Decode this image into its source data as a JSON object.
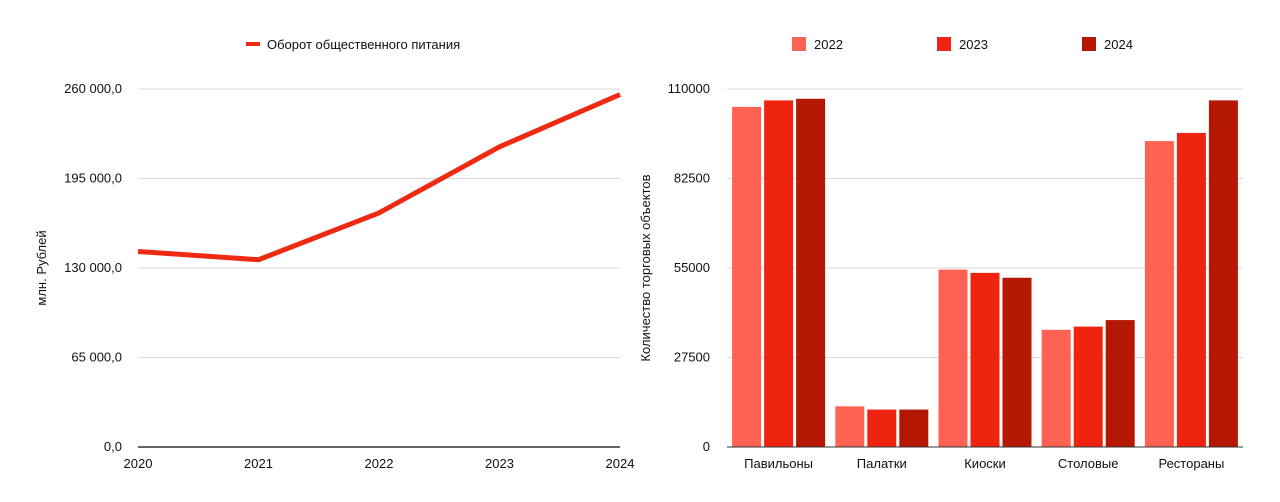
{
  "chart_data": [
    {
      "type": "line",
      "series": [
        {
          "name": "Оборот общественного питания",
          "color": "#EE2A12",
          "values": [
            142000,
            136000,
            170000,
            218000,
            256000
          ]
        }
      ],
      "x": [
        "2020",
        "2021",
        "2022",
        "2023",
        "2024"
      ],
      "ylabel": "млн. Рублей",
      "ylim": [
        0,
        260000
      ],
      "yticks": [
        "0,0",
        "65 000,0",
        "130 000,0",
        "195 000,0",
        "260 000,0"
      ],
      "grid": true,
      "legend": "top-center"
    },
    {
      "type": "bar",
      "categories": [
        "Павильоны",
        "Палатки",
        "Киоски",
        "Столовые",
        "Рестораны"
      ],
      "series": [
        {
          "name": "2022",
          "color": "#FF6252",
          "values": [
            104500,
            12500,
            54500,
            36000,
            94000
          ]
        },
        {
          "name": "2023",
          "color": "#EE2410",
          "values": [
            106500,
            11500,
            53500,
            37000,
            96500
          ]
        },
        {
          "name": "2024",
          "color": "#B51800",
          "values": [
            107000,
            11500,
            52000,
            39000,
            106500
          ]
        }
      ],
      "ylabel": "Количество торговых объектов",
      "ylim": [
        0,
        110000
      ],
      "yticks": [
        "0",
        "27500",
        "55000",
        "82500",
        "110000"
      ],
      "grid": true,
      "legend": "top-center"
    }
  ]
}
